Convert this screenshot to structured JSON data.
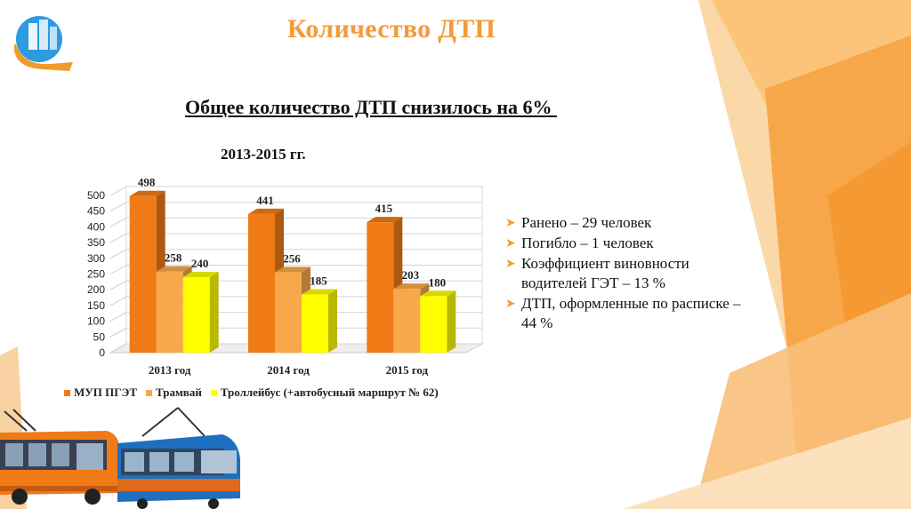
{
  "slide": {
    "title": "Количество ДТП",
    "subtitle": "Общее количество ДТП снизилось на 6% ",
    "chart_title": "2013-2015 гг."
  },
  "colors": {
    "accent": "#f39a3a",
    "series_mup": "#f07b16",
    "series_tram": "#f8a84a",
    "series_trolley": "#ffff00"
  },
  "chart_data": {
    "type": "bar",
    "title": "2013-2015 гг.",
    "categories": [
      "2013 год",
      "2014 год",
      "2015 год"
    ],
    "series": [
      {
        "name": "МУП ПГЭТ",
        "values": [
          498,
          441,
          415
        ],
        "color": "#f07b16"
      },
      {
        "name": "Трамвай",
        "values": [
          258,
          256,
          203
        ],
        "color": "#f8a84a"
      },
      {
        "name": "Троллейбус (+автобусный маршрут № 62)",
        "values": [
          240,
          185,
          180
        ],
        "color": "#ffff00"
      }
    ],
    "ylim": [
      0,
      500
    ],
    "yticks": [
      0,
      50,
      100,
      150,
      200,
      250,
      300,
      350,
      400,
      450,
      500
    ],
    "grid": true,
    "legend_position": "bottom"
  },
  "bullets": [
    "Ранено – 29 человек",
    "Погибло – 1 человек",
    "Коэффициент виновности водителей ГЭТ – 13 %",
    "ДТП, оформленные по расписке – 44 %"
  ]
}
